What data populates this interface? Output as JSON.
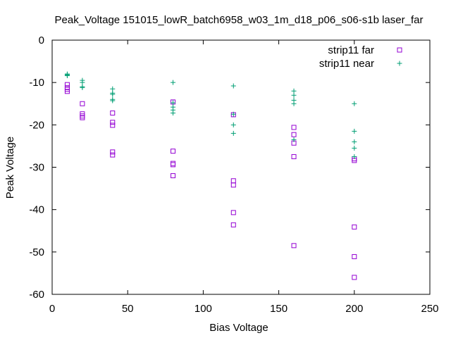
{
  "chart_data": {
    "type": "scatter",
    "title": "Peak_Voltage 151015_lowR_batch6958_w03_1m_d18_p06_s06-s1b laser_far",
    "xlabel": "Bias Voltage",
    "ylabel": "Peak Voltage",
    "xlim": [
      0,
      250
    ],
    "ylim": [
      -60,
      0
    ],
    "xticks": [
      "0",
      "50",
      "100",
      "150",
      "200",
      "250"
    ],
    "yticks": [
      "0",
      "-10",
      "-20",
      "-30",
      "-40",
      "-50",
      "-60"
    ],
    "xtick_values": [
      0,
      50,
      100,
      150,
      200,
      250
    ],
    "ytick_values": [
      0,
      -10,
      -20,
      -30,
      -40,
      -50,
      -60
    ],
    "legend_position": "top-right",
    "grid": false,
    "series": [
      {
        "name": "strip11 far",
        "marker": "square",
        "color": "#9400d3",
        "points": [
          [
            10,
            -10.5
          ],
          [
            10,
            -11.2
          ],
          [
            10,
            -11.6
          ],
          [
            10,
            -12.1
          ],
          [
            20,
            -15.0
          ],
          [
            20,
            -17.4
          ],
          [
            20,
            -17.9
          ],
          [
            20,
            -18.3
          ],
          [
            40,
            -17.2
          ],
          [
            40,
            -19.4
          ],
          [
            40,
            -20.1
          ],
          [
            40,
            -26.4
          ],
          [
            40,
            -27.1
          ],
          [
            80,
            -14.6
          ],
          [
            80,
            -26.2
          ],
          [
            80,
            -29.1
          ],
          [
            80,
            -29.4
          ],
          [
            80,
            -32.0
          ],
          [
            120,
            -17.6
          ],
          [
            120,
            -33.2
          ],
          [
            120,
            -34.2
          ],
          [
            120,
            -40.7
          ],
          [
            120,
            -43.6
          ],
          [
            160,
            -20.6
          ],
          [
            160,
            -22.3
          ],
          [
            160,
            -24.3
          ],
          [
            160,
            -27.5
          ],
          [
            160,
            -48.5
          ],
          [
            200,
            -28.0
          ],
          [
            200,
            -28.4
          ],
          [
            200,
            -44.1
          ],
          [
            200,
            -51.1
          ],
          [
            200,
            -56.0
          ]
        ]
      },
      {
        "name": "strip11 near",
        "marker": "plus",
        "color": "#009e73",
        "points": [
          [
            10,
            -8.0
          ],
          [
            10,
            -8.1
          ],
          [
            10,
            -8.3
          ],
          [
            10,
            -8.4
          ],
          [
            20,
            -9.5
          ],
          [
            20,
            -10.0
          ],
          [
            20,
            -11.0
          ],
          [
            20,
            -11.2
          ],
          [
            40,
            -11.5
          ],
          [
            40,
            -12.5
          ],
          [
            40,
            -12.8
          ],
          [
            40,
            -14.0
          ],
          [
            40,
            -14.3
          ],
          [
            80,
            -10.0
          ],
          [
            80,
            -14.8
          ],
          [
            80,
            -15.8
          ],
          [
            80,
            -16.5
          ],
          [
            80,
            -17.2
          ],
          [
            120,
            -10.8
          ],
          [
            120,
            -17.5
          ],
          [
            120,
            -20.0
          ],
          [
            120,
            -22.0
          ],
          [
            160,
            -12.0
          ],
          [
            160,
            -13.0
          ],
          [
            160,
            -14.2
          ],
          [
            160,
            -15.0
          ],
          [
            160,
            -23.5
          ],
          [
            200,
            -15.0
          ],
          [
            200,
            -21.5
          ],
          [
            200,
            -24.0
          ],
          [
            200,
            -25.5
          ],
          [
            200,
            -27.5
          ]
        ]
      }
    ]
  }
}
